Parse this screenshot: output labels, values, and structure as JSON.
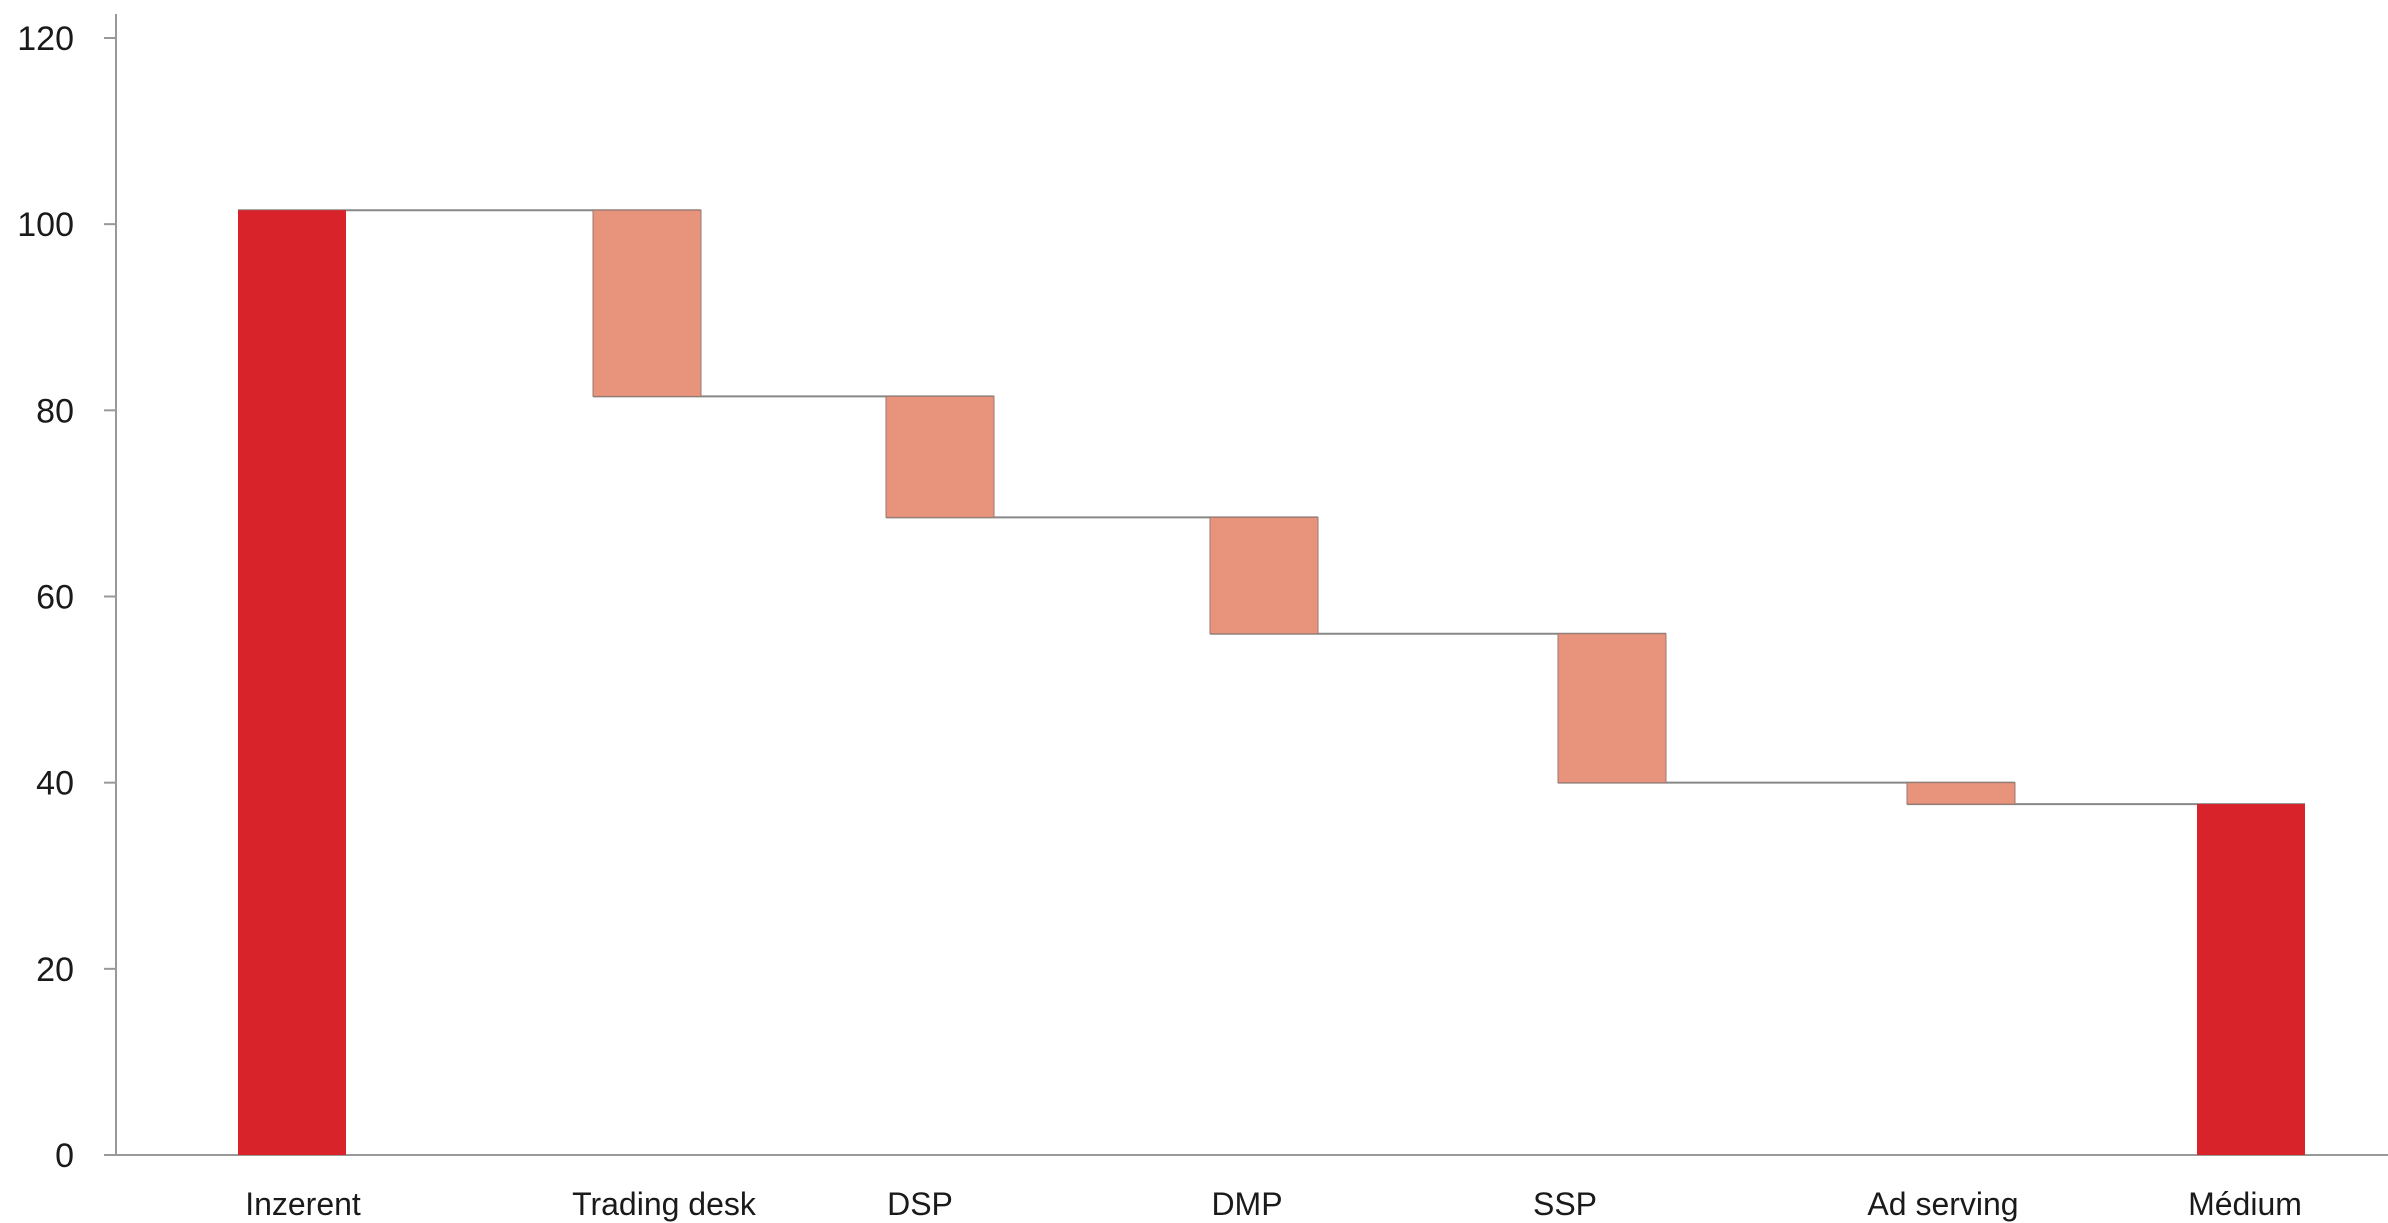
{
  "chart_data": {
    "type": "bar",
    "subtype": "waterfall",
    "title": "",
    "xlabel": "",
    "ylabel": "",
    "ylim": [
      0,
      120
    ],
    "yticks": [
      0,
      20,
      40,
      60,
      80,
      100,
      120
    ],
    "grid": false,
    "legend": "none",
    "categories": [
      "Inzerent",
      "Trading desk",
      "DSP",
      "DMP",
      "SSP",
      "Ad serving",
      "Médium"
    ],
    "bars": [
      {
        "category": "Inzerent",
        "kind": "total",
        "start": 0,
        "end": 101.5
      },
      {
        "category": "Trading desk",
        "kind": "decrease",
        "start": 101.5,
        "end": 81.5
      },
      {
        "category": "DSP",
        "kind": "decrease",
        "start": 81.5,
        "end": 68.5
      },
      {
        "category": "DMP",
        "kind": "decrease",
        "start": 68.5,
        "end": 56
      },
      {
        "category": "SSP",
        "kind": "decrease",
        "start": 56,
        "end": 40
      },
      {
        "category": "Ad serving",
        "kind": "decrease",
        "start": 40,
        "end": 37.7
      },
      {
        "category": "Médium",
        "kind": "total",
        "start": 0,
        "end": 37.7
      }
    ],
    "colors": {
      "total": "#d9232a",
      "decrease": "#e8937b",
      "axis": "#999999",
      "connector": "#888888"
    }
  }
}
